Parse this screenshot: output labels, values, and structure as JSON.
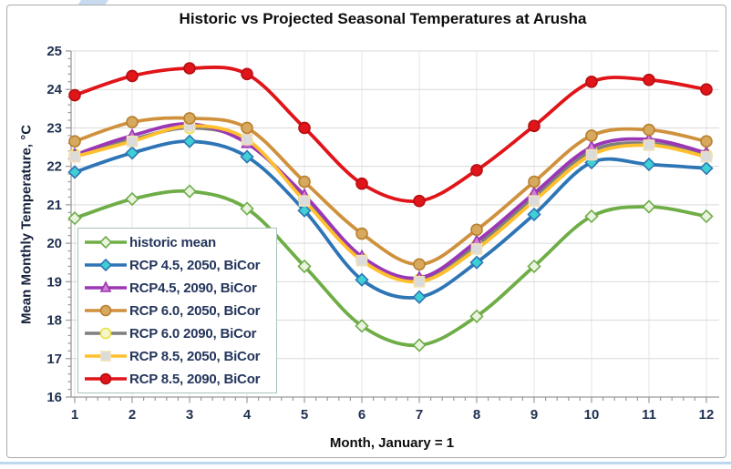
{
  "page": {
    "title": "Historic vs Projected Seasonal Temperatures at Arusha",
    "x_axis_title": "Month, January = 1",
    "y_axis_title": "Mean Monthly Temperature, °C"
  },
  "chart_data": {
    "type": "line",
    "title": "Historic vs Projected Seasonal Temperatures at Arusha",
    "xlabel": "Month, January = 1",
    "ylabel": "Mean Monthly Temperature, °C",
    "x": [
      1,
      2,
      3,
      4,
      5,
      6,
      7,
      8,
      9,
      10,
      11,
      12
    ],
    "xlim": [
      1,
      12
    ],
    "ylim": [
      16,
      25
    ],
    "y_ticks": [
      16,
      17,
      18,
      19,
      20,
      21,
      22,
      23,
      24,
      25
    ],
    "grid": true,
    "smoothed_lines": true,
    "legend_position": "inside-bottom-left",
    "series": [
      {
        "name": "historic mean",
        "color": "#6fad47",
        "marker": "diamond",
        "marker_fill": "#eaf3e0",
        "marker_stroke": "#6fad47",
        "values": [
          20.65,
          21.15,
          21.35,
          20.9,
          19.4,
          17.85,
          17.35,
          18.1,
          19.4,
          20.7,
          20.95,
          20.7
        ]
      },
      {
        "name": "RCP 4.5, 2050, BiCor",
        "color": "#2e75b6",
        "marker": "diamond",
        "marker_fill": "#3ed0d4",
        "marker_stroke": "#2e75b6",
        "values": [
          21.85,
          22.35,
          22.65,
          22.25,
          20.85,
          19.05,
          18.6,
          19.5,
          20.75,
          22.1,
          22.05,
          21.95
        ]
      },
      {
        "name": "RCP4.5, 2090, BiCor",
        "color": "#9b37b5",
        "marker": "triangle",
        "marker_fill": "#d47fd0",
        "marker_stroke": "#9b37b5",
        "values": [
          22.3,
          22.8,
          23.1,
          22.6,
          21.25,
          19.65,
          19.1,
          20.05,
          21.3,
          22.5,
          22.7,
          22.35
        ]
      },
      {
        "name": "RCP 6.0, 2050, BiCor",
        "color": "#d0913d",
        "marker": "circle",
        "marker_fill": "#d6a95f",
        "marker_stroke": "#b97f2f",
        "values": [
          22.65,
          23.15,
          23.25,
          23.0,
          21.6,
          20.25,
          19.45,
          20.35,
          21.6,
          22.8,
          22.95,
          22.65
        ]
      },
      {
        "name": "RCP 6.0 2090, BiCor",
        "color": "#7f7f7f",
        "marker": "circle",
        "marker_fill": "#f5f5ce",
        "marker_stroke": "#e8e23a",
        "values": [
          22.3,
          22.7,
          23.0,
          22.65,
          21.15,
          19.6,
          19.05,
          19.95,
          21.2,
          22.4,
          22.6,
          22.3
        ]
      },
      {
        "name": "RCP 8.5, 2050, BiCor",
        "color": "#ffc02e",
        "marker": "square",
        "marker_fill": "#dbdbdb",
        "marker_stroke": "#efe0b8",
        "values": [
          22.25,
          22.65,
          23.05,
          22.7,
          21.1,
          19.55,
          19.0,
          19.85,
          21.1,
          22.3,
          22.55,
          22.25
        ]
      },
      {
        "name": "RCP 8.5, 2090, BiCor",
        "color": "#e01419",
        "marker": "circle",
        "marker_fill": "#e01419",
        "marker_stroke": "#b50f13",
        "values": [
          23.85,
          24.35,
          24.55,
          24.4,
          23.0,
          21.55,
          21.1,
          21.9,
          23.05,
          24.2,
          24.25,
          24.0
        ]
      }
    ],
    "style": {
      "h_gridline_color": "#d9d9d9",
      "v_gridline_color": "#e4e4e4",
      "axis_color": "#9a9a9a",
      "tick_label_color": "#1f3050",
      "legend_text_color": "#24355c",
      "legend_border_color": "#a6c6b6",
      "title_color": "#0d0d0d",
      "frame_border_color": "#ababab",
      "page_accent_color": "#c7dbf0"
    }
  }
}
